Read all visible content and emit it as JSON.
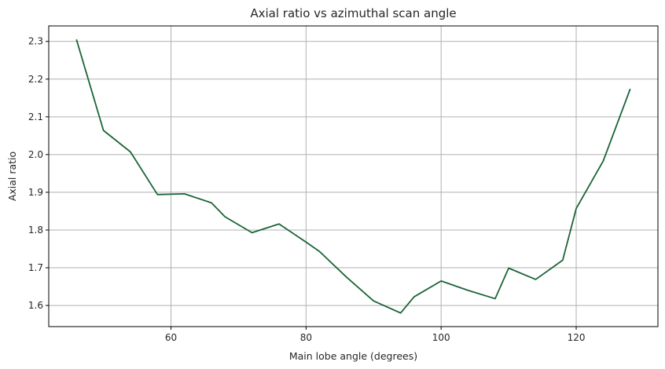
{
  "chart_data": {
    "type": "line",
    "title": "Axial ratio vs azimuthal scan angle",
    "xlabel": "Main lobe angle (degrees)",
    "ylabel": "Axial ratio",
    "xlim": [
      41.9,
      132.1
    ],
    "ylim": [
      1.544,
      2.341
    ],
    "xticks": [
      60,
      80,
      100,
      120
    ],
    "yticks": [
      1.6,
      1.7,
      1.8,
      1.9,
      2.0,
      2.1,
      2.2,
      2.3
    ],
    "grid": true,
    "series": [
      {
        "color": "#1b6437",
        "x": [
          46,
          50,
          54,
          58,
          62,
          66,
          68,
          72,
          76,
          80,
          82,
          86,
          90,
          94,
          96,
          100,
          104,
          108,
          110,
          114,
          118,
          120,
          124,
          128
        ],
        "y": [
          2.305,
          2.064,
          2.007,
          1.894,
          1.896,
          1.872,
          1.835,
          1.793,
          1.816,
          1.768,
          1.743,
          1.675,
          1.612,
          1.58,
          1.623,
          1.665,
          1.64,
          1.618,
          1.699,
          1.669,
          1.72,
          1.857,
          1.983,
          2.174
        ]
      }
    ]
  }
}
